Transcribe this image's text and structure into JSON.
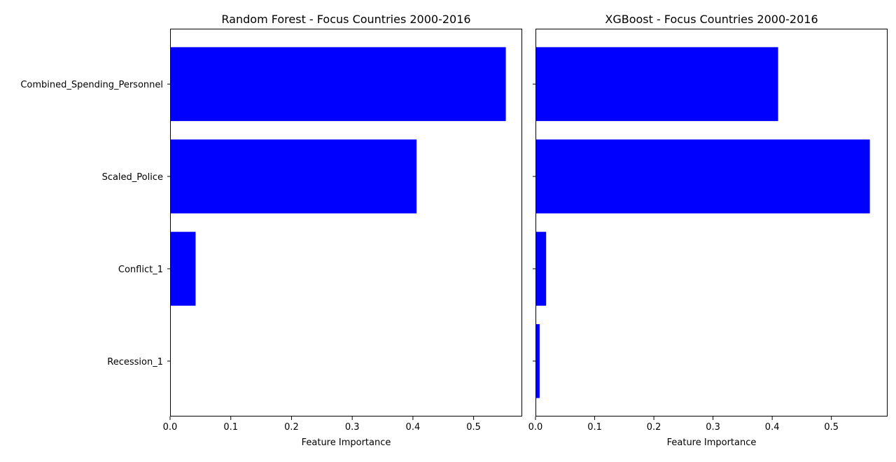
{
  "chart_data": [
    {
      "type": "bar",
      "orientation": "horizontal",
      "title": "Random Forest - Focus Countries 2000-2016",
      "xlabel": "Feature Importance",
      "ylabel": "",
      "categories": [
        "Combined_Spending_Personnel",
        "Scaled_Police",
        "Conflict_1",
        "Recession_1"
      ],
      "values": [
        0.553,
        0.406,
        0.042,
        0.0
      ],
      "xlim": [
        0,
        0.58
      ],
      "xticks": [
        "0.0",
        "0.1",
        "0.2",
        "0.3",
        "0.4",
        "0.5"
      ],
      "bar_color": "#0000ff",
      "grid": false
    },
    {
      "type": "bar",
      "orientation": "horizontal",
      "title": "XGBoost - Focus Countries 2000-2016",
      "xlabel": "Feature Importance",
      "ylabel": "",
      "categories": [
        "Combined_Spending_Personnel",
        "Scaled_Police",
        "Conflict_1",
        "Recession_1"
      ],
      "values": [
        0.41,
        0.565,
        0.018,
        0.007
      ],
      "xlim": [
        0,
        0.595
      ],
      "xticks": [
        "0.0",
        "0.1",
        "0.2",
        "0.3",
        "0.4",
        "0.5"
      ],
      "bar_color": "#0000ff",
      "grid": false
    }
  ]
}
